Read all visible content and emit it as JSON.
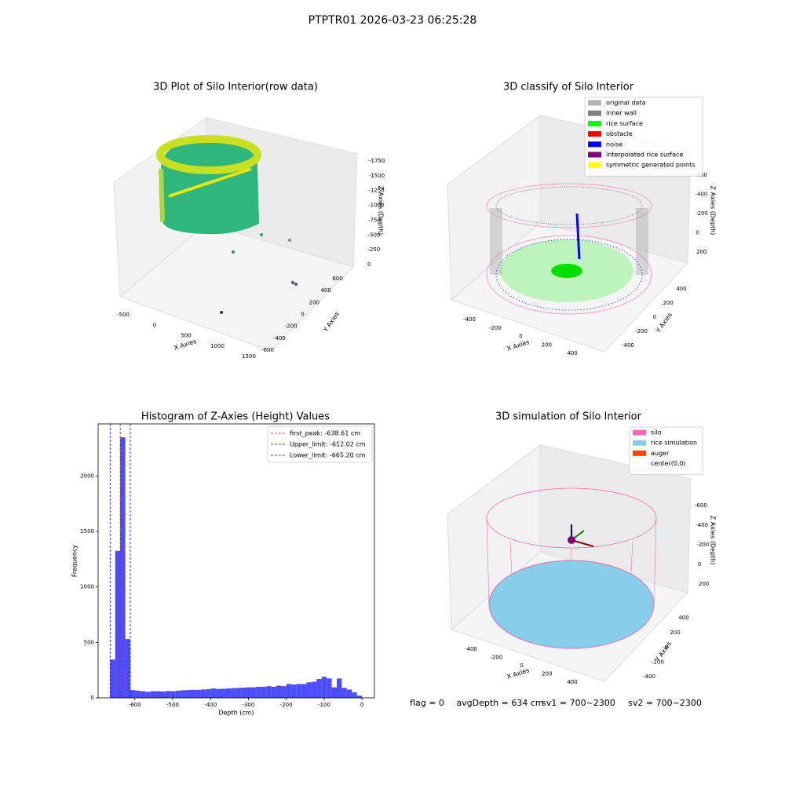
{
  "title": "PTPTR01 2026-03-23 06:25:28",
  "footer": [
    "flag = 0",
    "avgDepth = 634 cm",
    "sv1 = 700~2300",
    "sv2 = 700~2300"
  ],
  "chart_data": [
    {
      "type": "scatter3d",
      "title": "3D Plot of Silo Interior(row data)",
      "xlabel": "X Axies",
      "ylabel": "Y Axies",
      "zlabel": "Z Axies (Depth)",
      "xlim": [
        -500,
        1500
      ],
      "xticks": [
        -500,
        0,
        500,
        1000,
        1500
      ],
      "ylim": [
        -600,
        600
      ],
      "yticks": [
        -600,
        -400,
        -200,
        0,
        200,
        400,
        600
      ],
      "zlim": [
        -1750,
        0
      ],
      "zticks": [
        0,
        -250,
        -500,
        -750,
        -1000,
        -1250,
        -1500,
        -1750
      ]
    },
    {
      "type": "scatter3d",
      "title": "3D classify of Silo Interior",
      "xlabel": "X Axies",
      "ylabel": "Y Axies",
      "zlabel": "Z Axies (Depth)",
      "xlim": [
        -400,
        400
      ],
      "xticks": [
        -400,
        -200,
        0,
        200,
        400
      ],
      "ylim": [
        -400,
        400
      ],
      "yticks": [
        -400,
        -200,
        0,
        200,
        400
      ],
      "zlim": [
        -600,
        200
      ],
      "zticks": [
        200,
        0,
        -200,
        -400,
        -600
      ],
      "series": [
        {
          "name": "original data",
          "color": "#b3b3b3"
        },
        {
          "name": "inner wall",
          "color": "#808080"
        },
        {
          "name": "rice surface",
          "color": "#00ff00"
        },
        {
          "name": "obstacle",
          "color": "#ff0000"
        },
        {
          "name": "noise",
          "color": "#0000ff"
        },
        {
          "name": "interpolated rice surface",
          "color": "#800080"
        },
        {
          "name": "symmetric generated points",
          "color": "#ffff00"
        }
      ]
    },
    {
      "type": "histogram",
      "title": "Histogram of Z-Axies (Height) Values",
      "xlabel": "Depth (cm)",
      "ylabel": "Frequency",
      "color": "#4d4dff",
      "bins": [
        -665.2,
        -651.9,
        -638.59,
        -625.29,
        -611.98,
        -598.68,
        -585.38,
        -572.07,
        -558.77,
        -545.46,
        -532.16,
        -518.86,
        -505.55,
        -492.25,
        -478.94,
        -465.64,
        -452.34,
        -439.03,
        -425.73,
        -412.42,
        -399.12,
        -385.82,
        -372.51,
        -359.21,
        -345.9,
        -332.6,
        -319.3,
        -305.99,
        -292.69,
        -279.38,
        -266.08,
        -252.78,
        -239.47,
        -226.17,
        -212.86,
        -199.56,
        -186.26,
        -172.95,
        -159.65,
        -146.34,
        -133.04,
        -119.74,
        -106.43,
        -93.13,
        -79.82,
        -66.52,
        -53.22,
        -39.91,
        -26.61,
        -13.3,
        0
      ],
      "values": [
        345,
        1325,
        2350,
        530,
        70,
        65,
        60,
        55,
        60,
        60,
        58,
        62,
        60,
        65,
        68,
        70,
        72,
        72,
        75,
        78,
        85,
        80,
        82,
        85,
        88,
        90,
        92,
        95,
        95,
        100,
        100,
        105,
        100,
        110,
        105,
        125,
        120,
        125,
        125,
        140,
        145,
        170,
        190,
        175,
        95,
        175,
        90,
        75,
        50,
        20
      ],
      "xlim": [
        -697,
        33
      ],
      "xticks": [
        -600,
        -500,
        -400,
        -300,
        -200,
        -100,
        0
      ],
      "ylim": [
        0,
        2470
      ],
      "yticks": [
        0,
        500,
        1000,
        1500,
        2000
      ],
      "legend": "upper right",
      "vlines": [
        {
          "name": "first_peak: -638.61 cm",
          "value": -638.61,
          "color": "#ff0000"
        },
        {
          "name": "Upper_limit: -612.02 cm",
          "value": -612.02,
          "color": "#0000ff"
        },
        {
          "name": "Lower_limit: -665.20 cm",
          "value": -665.2,
          "color": "#0000ff"
        }
      ]
    },
    {
      "type": "scatter3d",
      "title": "3D simulation of Silo Interior",
      "xlabel": "X Axies",
      "ylabel": "Y Axies",
      "zlabel": "Z Axies (Depth)",
      "xlim": [
        -400,
        400
      ],
      "xticks": [
        -400,
        -200,
        0,
        200,
        400
      ],
      "ylim": [
        -400,
        400
      ],
      "yticks": [
        -400,
        -200,
        0,
        200,
        400
      ],
      "zlim": [
        -600,
        200
      ],
      "zticks": [
        200,
        0,
        -200,
        -400,
        -600
      ],
      "series": [
        {
          "name": "silo",
          "color": "#ff69b4"
        },
        {
          "name": "rice simulation",
          "color": "#87ceeb"
        },
        {
          "name": "auger",
          "color": "#ff4500"
        },
        {
          "name": "center(0,0)",
          "color": "#ffffff"
        }
      ]
    }
  ]
}
